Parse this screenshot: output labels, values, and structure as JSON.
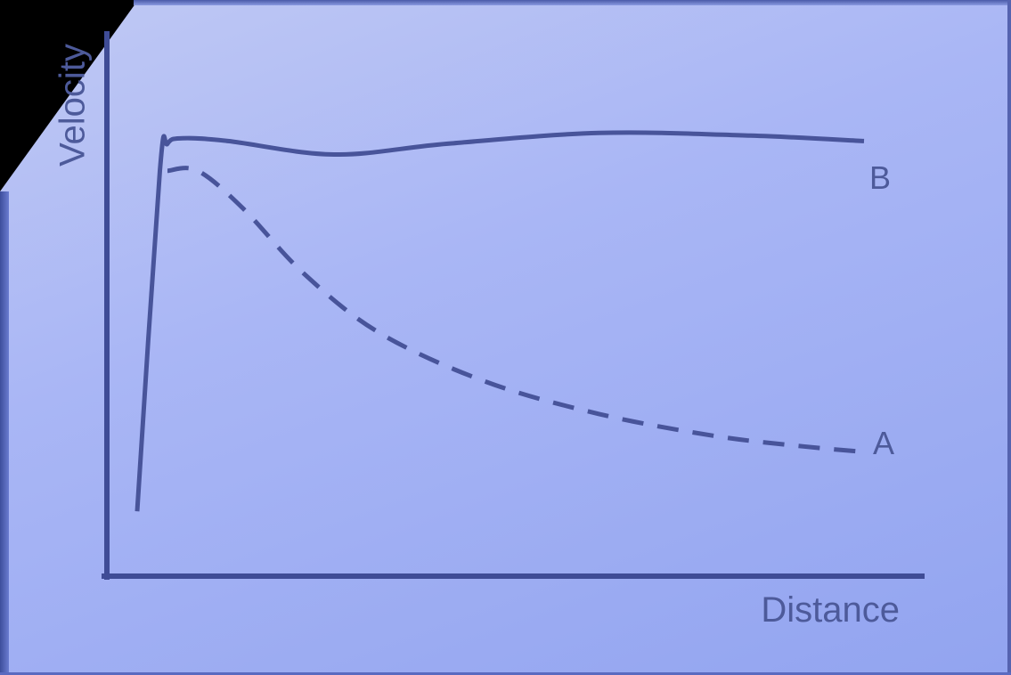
{
  "chart_data": {
    "type": "line",
    "xlabel": "Distance",
    "ylabel": "Velocity",
    "xlim": [
      0,
      100
    ],
    "ylim": [
      0,
      100
    ],
    "grid": false,
    "series": [
      {
        "name": "B",
        "style": "solid",
        "x": [
          4,
          7,
          8,
          10,
          16,
          30,
          45,
          65,
          85,
          100
        ],
        "y": [
          12,
          75,
          80,
          81,
          80.5,
          78,
          80,
          82,
          81.5,
          80.5
        ]
      },
      {
        "name": "A",
        "style": "dashed",
        "x": [
          8,
          12,
          18,
          26,
          36,
          50,
          65,
          80,
          92,
          100
        ],
        "y": [
          75,
          75,
          68,
          56,
          45,
          36,
          30,
          26,
          24,
          23
        ]
      }
    ]
  },
  "colors": {
    "line": "#48549a",
    "axis": "#3f4c96"
  }
}
